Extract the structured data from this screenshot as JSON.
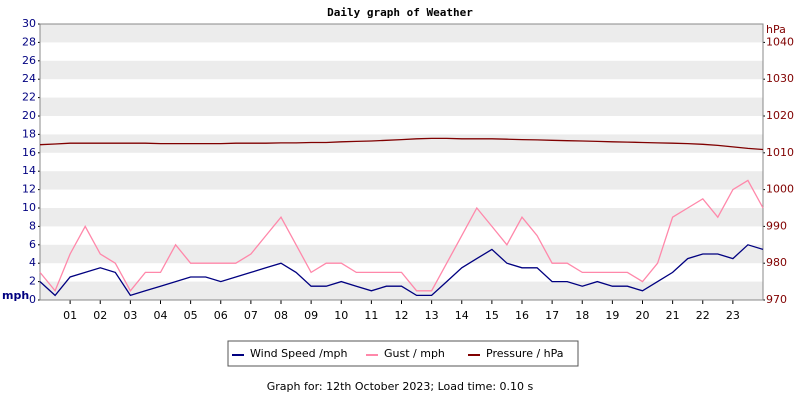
{
  "chart_data": {
    "type": "line",
    "title": "Daily graph of Weather",
    "y_label": "mph",
    "y2_label": "hPa",
    "footer": "Graph for: 12th October 2023; Load time: 0.10 s",
    "x": [
      0,
      0.5,
      1,
      1.5,
      2,
      2.5,
      3,
      3.5,
      4,
      4.5,
      5,
      5.5,
      6,
      6.5,
      7,
      7.5,
      8,
      8.5,
      9,
      9.5,
      10,
      10.5,
      11,
      11.5,
      12,
      12.5,
      13,
      13.5,
      14,
      14.5,
      15,
      15.5,
      16,
      16.5,
      17,
      17.5,
      18,
      18.5,
      19,
      19.5,
      20,
      20.5,
      21,
      21.5,
      22,
      22.5,
      23,
      23.5,
      24
    ],
    "xlim": [
      0,
      24
    ],
    "xticks": [
      {
        "value": 1,
        "label": "01"
      },
      {
        "value": 2,
        "label": "02"
      },
      {
        "value": 3,
        "label": "03"
      },
      {
        "value": 4,
        "label": "04"
      },
      {
        "value": 5,
        "label": "05"
      },
      {
        "value": 6,
        "label": "06"
      },
      {
        "value": 7,
        "label": "07"
      },
      {
        "value": 8,
        "label": "08"
      },
      {
        "value": 9,
        "label": "09"
      },
      10,
      11,
      12,
      13,
      14,
      15,
      16,
      17,
      18,
      19,
      20,
      21,
      22,
      23
    ],
    "ylim": [
      0,
      30
    ],
    "yticks": [
      0,
      2,
      4,
      6,
      8,
      10,
      12,
      14,
      16,
      18,
      20,
      22,
      24,
      26,
      28,
      30
    ],
    "y2lim": [
      970,
      1045
    ],
    "y2ticks": [
      970,
      980,
      990,
      1000,
      1010,
      1020,
      1030,
      1040
    ],
    "grid": true,
    "series": [
      {
        "name": "Wind Speed /mph",
        "color": "#000080",
        "values": [
          2,
          0.5,
          2.5,
          3,
          3.5,
          3,
          0.5,
          1,
          1.5,
          2,
          2.5,
          2.5,
          2,
          2.5,
          3,
          3.5,
          4,
          3,
          1.5,
          1.5,
          2,
          1.5,
          1,
          1.5,
          1.5,
          0.5,
          0.5,
          2,
          3.5,
          4.5,
          5.5,
          4,
          3.5,
          3.5,
          2,
          2,
          1.5,
          2,
          1.5,
          1.5,
          1,
          2,
          3,
          4.5,
          5,
          5,
          4.5,
          6,
          5.5
        ]
      },
      {
        "name": "Gust / mph",
        "color": "#ff88aa",
        "values": [
          3,
          1,
          5,
          8,
          5,
          4,
          1,
          3,
          3,
          6,
          4,
          4,
          4,
          4,
          5,
          7,
          9,
          6,
          3,
          4,
          4,
          3,
          3,
          3,
          3,
          1,
          1,
          4,
          7,
          10,
          8,
          6,
          9,
          7,
          4,
          4,
          3,
          3,
          3,
          3,
          2,
          4,
          9,
          10,
          11,
          9,
          12,
          13,
          10
        ]
      },
      {
        "name": "Pressure / hPa",
        "color": "#800000",
        "axis": "y2",
        "values": [
          1012.2,
          1012.4,
          1012.6,
          1012.6,
          1012.6,
          1012.6,
          1012.6,
          1012.6,
          1012.5,
          1012.5,
          1012.5,
          1012.5,
          1012.5,
          1012.6,
          1012.6,
          1012.6,
          1012.7,
          1012.7,
          1012.8,
          1012.8,
          1013,
          1013.1,
          1013.2,
          1013.4,
          1013.6,
          1013.8,
          1013.9,
          1013.9,
          1013.8,
          1013.8,
          1013.8,
          1013.7,
          1013.6,
          1013.5,
          1013.4,
          1013.3,
          1013.2,
          1013.1,
          1013,
          1012.9,
          1012.8,
          1012.7,
          1012.6,
          1012.5,
          1012.3,
          1012,
          1011.6,
          1011.2,
          1010.9
        ]
      }
    ]
  }
}
